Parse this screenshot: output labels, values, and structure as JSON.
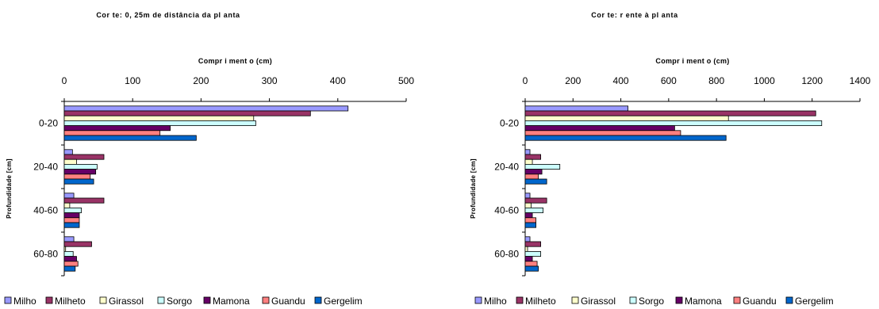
{
  "colors": {
    "Milho": "#9999ff",
    "Milheto": "#993366",
    "Girassol": "#ffffcc",
    "Sorgo": "#ccffff",
    "Mamona": "#660066",
    "Guandu": "#ff8080",
    "Gergelim": "#0066cc"
  },
  "chart_data": [
    {
      "type": "bar",
      "orientation": "horizontal",
      "title": "Cor te: 0, 25m de distância da pl anta",
      "xlabel": "Compr i ment o (cm)",
      "ylabel": "Profundidade [cm]",
      "xlim": [
        0,
        500
      ],
      "xticks": [
        0,
        100,
        200,
        300,
        400,
        500
      ],
      "categories": [
        "0-20",
        "20-40",
        "40-60",
        "60-80"
      ],
      "series": [
        {
          "name": "Milho",
          "values": [
            415,
            12,
            14,
            14
          ]
        },
        {
          "name": "Milheto",
          "values": [
            360,
            58,
            58,
            40
          ]
        },
        {
          "name": "Girassol",
          "values": [
            277,
            18,
            8,
            2
          ]
        },
        {
          "name": "Sorgo",
          "values": [
            280,
            48,
            25,
            13
          ]
        },
        {
          "name": "Mamona",
          "values": [
            155,
            46,
            22,
            18
          ]
        },
        {
          "name": "Guandu",
          "values": [
            140,
            38,
            22,
            20
          ]
        },
        {
          "name": "Gergelim",
          "values": [
            193,
            43,
            22,
            16
          ]
        }
      ],
      "legend_position": "bottom"
    },
    {
      "type": "bar",
      "orientation": "horizontal",
      "title": "Cor te: r ente à pl anta",
      "xlabel": "Compr i ment o (cm)",
      "ylabel": "Profundidade [cm]",
      "xlim": [
        0,
        1400
      ],
      "xticks": [
        0,
        200,
        400,
        600,
        800,
        1000,
        1200,
        1400
      ],
      "categories": [
        "0-20",
        "20-40",
        "40-60",
        "60-80"
      ],
      "series": [
        {
          "name": "Milho",
          "values": [
            430,
            20,
            20,
            20
          ]
        },
        {
          "name": "Milheto",
          "values": [
            1215,
            65,
            90,
            65
          ]
        },
        {
          "name": "Girassol",
          "values": [
            850,
            30,
            25,
            10
          ]
        },
        {
          "name": "Sorgo",
          "values": [
            1240,
            145,
            75,
            65
          ]
        },
        {
          "name": "Mamona",
          "values": [
            625,
            70,
            30,
            30
          ]
        },
        {
          "name": "Guandu",
          "values": [
            650,
            55,
            45,
            50
          ]
        },
        {
          "name": "Gergelim",
          "values": [
            840,
            90,
            45,
            55
          ]
        }
      ],
      "legend_position": "bottom"
    }
  ]
}
